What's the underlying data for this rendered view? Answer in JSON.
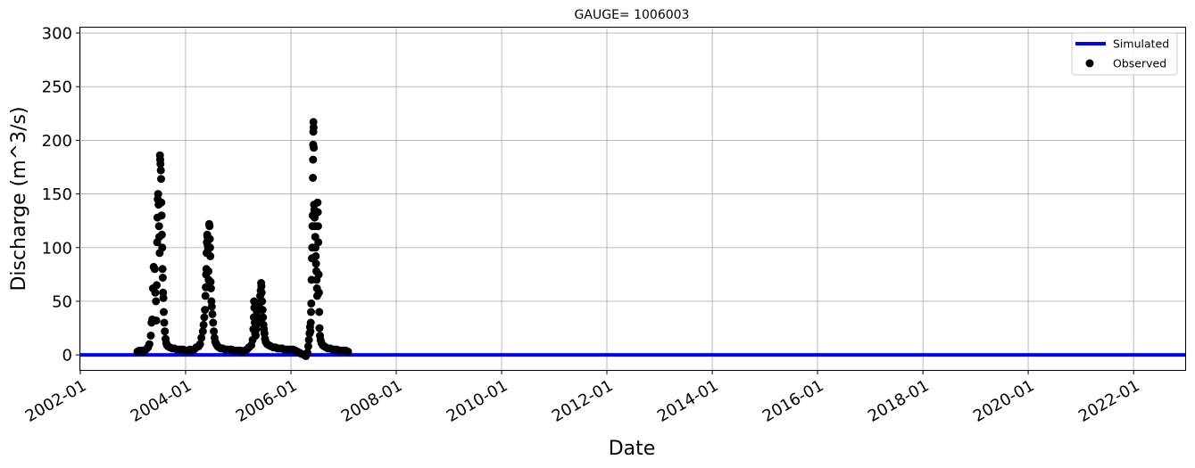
{
  "chart_data": {
    "type": "line",
    "title": "GAUGE= 1006003",
    "xlabel": "Date",
    "ylabel": "Discharge (m^3/s)",
    "x_axis_type": "date",
    "xlim": [
      "2002-01-01",
      "2022-12-31"
    ],
    "ylim": [
      -14,
      305
    ],
    "xticks": [
      "2002-01",
      "2004-01",
      "2006-01",
      "2008-01",
      "2010-01",
      "2012-01",
      "2014-01",
      "2016-01",
      "2018-01",
      "2020-01",
      "2022-01"
    ],
    "yticks": [
      0,
      50,
      100,
      150,
      200,
      250,
      300
    ],
    "grid": true,
    "legend_position": "upper-right",
    "colors": {
      "simulated": "#0000ff",
      "observed": "#000000"
    },
    "series": [
      {
        "name": "Simulated",
        "kind": "line",
        "points": [
          [
            "2002-01-01",
            0
          ],
          [
            "2022-12-31",
            0
          ]
        ]
      },
      {
        "name": "Observed",
        "kind": "scatter",
        "points": [
          [
            "2003-02-01",
            3
          ],
          [
            "2003-02-15",
            4
          ],
          [
            "2003-03-01",
            4
          ],
          [
            "2003-03-15",
            3
          ],
          [
            "2003-04-01",
            5
          ],
          [
            "2003-04-15",
            7
          ],
          [
            "2003-04-25",
            10
          ],
          [
            "2003-05-05",
            18
          ],
          [
            "2003-05-10",
            30
          ],
          [
            "2003-05-15",
            33
          ],
          [
            "2003-05-20",
            62
          ],
          [
            "2003-05-25",
            82
          ],
          [
            "2003-06-01",
            80
          ],
          [
            "2003-06-05",
            58
          ],
          [
            "2003-06-10",
            50
          ],
          [
            "2003-06-12",
            32
          ],
          [
            "2003-06-15",
            65
          ],
          [
            "2003-06-18",
            105
          ],
          [
            "2003-06-20",
            128
          ],
          [
            "2003-06-22",
            145
          ],
          [
            "2003-06-25",
            150
          ],
          [
            "2003-06-28",
            140
          ],
          [
            "2003-07-01",
            120
          ],
          [
            "2003-07-03",
            110
          ],
          [
            "2003-07-05",
            95
          ],
          [
            "2003-07-07",
            186
          ],
          [
            "2003-07-09",
            182
          ],
          [
            "2003-07-11",
            178
          ],
          [
            "2003-07-13",
            172
          ],
          [
            "2003-07-15",
            164
          ],
          [
            "2003-07-17",
            142
          ],
          [
            "2003-07-19",
            130
          ],
          [
            "2003-07-21",
            112
          ],
          [
            "2003-07-23",
            100
          ],
          [
            "2003-07-25",
            80
          ],
          [
            "2003-07-27",
            72
          ],
          [
            "2003-07-29",
            58
          ],
          [
            "2003-07-31",
            53
          ],
          [
            "2003-08-03",
            40
          ],
          [
            "2003-08-06",
            30
          ],
          [
            "2003-08-10",
            22
          ],
          [
            "2003-08-15",
            15
          ],
          [
            "2003-08-20",
            11
          ],
          [
            "2003-08-25",
            9
          ],
          [
            "2003-09-01",
            8
          ],
          [
            "2003-09-15",
            7
          ],
          [
            "2003-10-01",
            6
          ],
          [
            "2003-10-15",
            6
          ],
          [
            "2003-11-01",
            5
          ],
          [
            "2003-11-15",
            5
          ],
          [
            "2003-12-01",
            5
          ],
          [
            "2003-12-15",
            5
          ],
          [
            "2004-01-01",
            4
          ],
          [
            "2004-01-15",
            4
          ],
          [
            "2004-02-01",
            5
          ],
          [
            "2004-02-15",
            4
          ],
          [
            "2004-03-01",
            5
          ],
          [
            "2004-03-15",
            7
          ],
          [
            "2004-04-01",
            8
          ],
          [
            "2004-04-10",
            10
          ],
          [
            "2004-04-20",
            16
          ],
          [
            "2004-04-30",
            22
          ],
          [
            "2004-05-05",
            28
          ],
          [
            "2004-05-10",
            35
          ],
          [
            "2004-05-15",
            42
          ],
          [
            "2004-05-18",
            55
          ],
          [
            "2004-05-20",
            63
          ],
          [
            "2004-05-22",
            75
          ],
          [
            "2004-05-24",
            80
          ],
          [
            "2004-05-26",
            95
          ],
          [
            "2004-05-28",
            105
          ],
          [
            "2004-05-30",
            112
          ],
          [
            "2004-06-01",
            110
          ],
          [
            "2004-06-03",
            102
          ],
          [
            "2004-06-05",
            98
          ],
          [
            "2004-06-07",
            78
          ],
          [
            "2004-06-09",
            70
          ],
          [
            "2004-06-11",
            65
          ],
          [
            "2004-06-13",
            122
          ],
          [
            "2004-06-15",
            120
          ],
          [
            "2004-06-17",
            108
          ],
          [
            "2004-06-19",
            100
          ],
          [
            "2004-06-21",
            92
          ],
          [
            "2004-06-23",
            68
          ],
          [
            "2004-06-25",
            62
          ],
          [
            "2004-06-28",
            50
          ],
          [
            "2004-07-01",
            45
          ],
          [
            "2004-07-05",
            38
          ],
          [
            "2004-07-10",
            30
          ],
          [
            "2004-07-15",
            22
          ],
          [
            "2004-07-20",
            16
          ],
          [
            "2004-07-25",
            12
          ],
          [
            "2004-08-01",
            10
          ],
          [
            "2004-08-10",
            8
          ],
          [
            "2004-08-20",
            7
          ],
          [
            "2004-09-01",
            6
          ],
          [
            "2004-09-15",
            6
          ],
          [
            "2004-10-01",
            5
          ],
          [
            "2004-10-15",
            5
          ],
          [
            "2004-11-01",
            5
          ],
          [
            "2004-11-15",
            5
          ],
          [
            "2004-12-01",
            4
          ],
          [
            "2004-12-15",
            4
          ],
          [
            "2005-01-01",
            4
          ],
          [
            "2005-01-15",
            4
          ],
          [
            "2005-02-01",
            3
          ],
          [
            "2005-02-15",
            4
          ],
          [
            "2005-03-01",
            5
          ],
          [
            "2005-03-15",
            7
          ],
          [
            "2005-04-01",
            9
          ],
          [
            "2005-04-10",
            14
          ],
          [
            "2005-04-15",
            24
          ],
          [
            "2005-04-18",
            35
          ],
          [
            "2005-04-20",
            50
          ],
          [
            "2005-04-22",
            44
          ],
          [
            "2005-04-25",
            30
          ],
          [
            "2005-04-28",
            20
          ],
          [
            "2005-05-01",
            18
          ],
          [
            "2005-05-05",
            24
          ],
          [
            "2005-05-10",
            40
          ],
          [
            "2005-05-15",
            48
          ],
          [
            "2005-05-18",
            35
          ],
          [
            "2005-05-20",
            30
          ],
          [
            "2005-05-25",
            45
          ],
          [
            "2005-06-01",
            55
          ],
          [
            "2005-06-05",
            60
          ],
          [
            "2005-06-08",
            67
          ],
          [
            "2005-06-10",
            64
          ],
          [
            "2005-06-12",
            58
          ],
          [
            "2005-06-15",
            50
          ],
          [
            "2005-06-18",
            42
          ],
          [
            "2005-06-21",
            35
          ],
          [
            "2005-06-24",
            28
          ],
          [
            "2005-06-27",
            24
          ],
          [
            "2005-07-01",
            20
          ],
          [
            "2005-07-05",
            15
          ],
          [
            "2005-07-10",
            12
          ],
          [
            "2005-07-20",
            10
          ],
          [
            "2005-08-01",
            9
          ],
          [
            "2005-08-15",
            8
          ],
          [
            "2005-09-01",
            7
          ],
          [
            "2005-09-15",
            7
          ],
          [
            "2005-10-01",
            6
          ],
          [
            "2005-10-15",
            6
          ],
          [
            "2005-11-01",
            6
          ],
          [
            "2005-11-15",
            5
          ],
          [
            "2005-12-01",
            5
          ],
          [
            "2005-12-15",
            5
          ],
          [
            "2006-01-01",
            5
          ],
          [
            "2006-01-15",
            5
          ],
          [
            "2006-02-01",
            4
          ],
          [
            "2006-02-15",
            3
          ],
          [
            "2006-03-01",
            2
          ],
          [
            "2006-03-15",
            1
          ],
          [
            "2006-04-01",
            0
          ],
          [
            "2006-04-15",
            -1
          ],
          [
            "2006-04-25",
            2
          ],
          [
            "2006-05-01",
            8
          ],
          [
            "2006-05-05",
            14
          ],
          [
            "2006-05-10",
            20
          ],
          [
            "2006-05-13",
            26
          ],
          [
            "2006-05-16",
            22
          ],
          [
            "2006-05-18",
            30
          ],
          [
            "2006-05-20",
            40
          ],
          [
            "2006-05-22",
            48
          ],
          [
            "2006-05-24",
            70
          ],
          [
            "2006-05-26",
            90
          ],
          [
            "2006-05-28",
            100
          ],
          [
            "2006-05-30",
            120
          ],
          [
            "2006-06-01",
            130
          ],
          [
            "2006-06-02",
            165
          ],
          [
            "2006-06-03",
            182
          ],
          [
            "2006-06-04",
            196
          ],
          [
            "2006-06-05",
            208
          ],
          [
            "2006-06-06",
            217
          ],
          [
            "2006-06-07",
            212
          ],
          [
            "2006-06-08",
            193
          ],
          [
            "2006-06-10",
            140
          ],
          [
            "2006-06-12",
            135
          ],
          [
            "2006-06-14",
            128
          ],
          [
            "2006-06-16",
            120
          ],
          [
            "2006-06-18",
            110
          ],
          [
            "2006-06-20",
            100
          ],
          [
            "2006-06-22",
            92
          ],
          [
            "2006-06-24",
            85
          ],
          [
            "2006-06-26",
            78
          ],
          [
            "2006-06-28",
            70
          ],
          [
            "2006-06-30",
            62
          ],
          [
            "2006-07-02",
            55
          ],
          [
            "2006-07-04",
            142
          ],
          [
            "2006-07-06",
            133
          ],
          [
            "2006-07-08",
            120
          ],
          [
            "2006-07-10",
            105
          ],
          [
            "2006-07-12",
            75
          ],
          [
            "2006-07-14",
            58
          ],
          [
            "2006-07-16",
            40
          ],
          [
            "2006-07-18",
            25
          ],
          [
            "2006-07-21",
            18
          ],
          [
            "2006-07-25",
            14
          ],
          [
            "2006-08-01",
            11
          ],
          [
            "2006-08-10",
            9
          ],
          [
            "2006-08-20",
            8
          ],
          [
            "2006-09-01",
            7
          ],
          [
            "2006-09-15",
            6
          ],
          [
            "2006-10-01",
            6
          ],
          [
            "2006-10-15",
            5
          ],
          [
            "2006-11-01",
            5
          ],
          [
            "2006-11-15",
            5
          ],
          [
            "2006-12-01",
            4
          ],
          [
            "2006-12-15",
            4
          ],
          [
            "2007-01-01",
            4
          ],
          [
            "2007-01-15",
            4
          ],
          [
            "2007-02-01",
            3
          ]
        ]
      }
    ]
  }
}
